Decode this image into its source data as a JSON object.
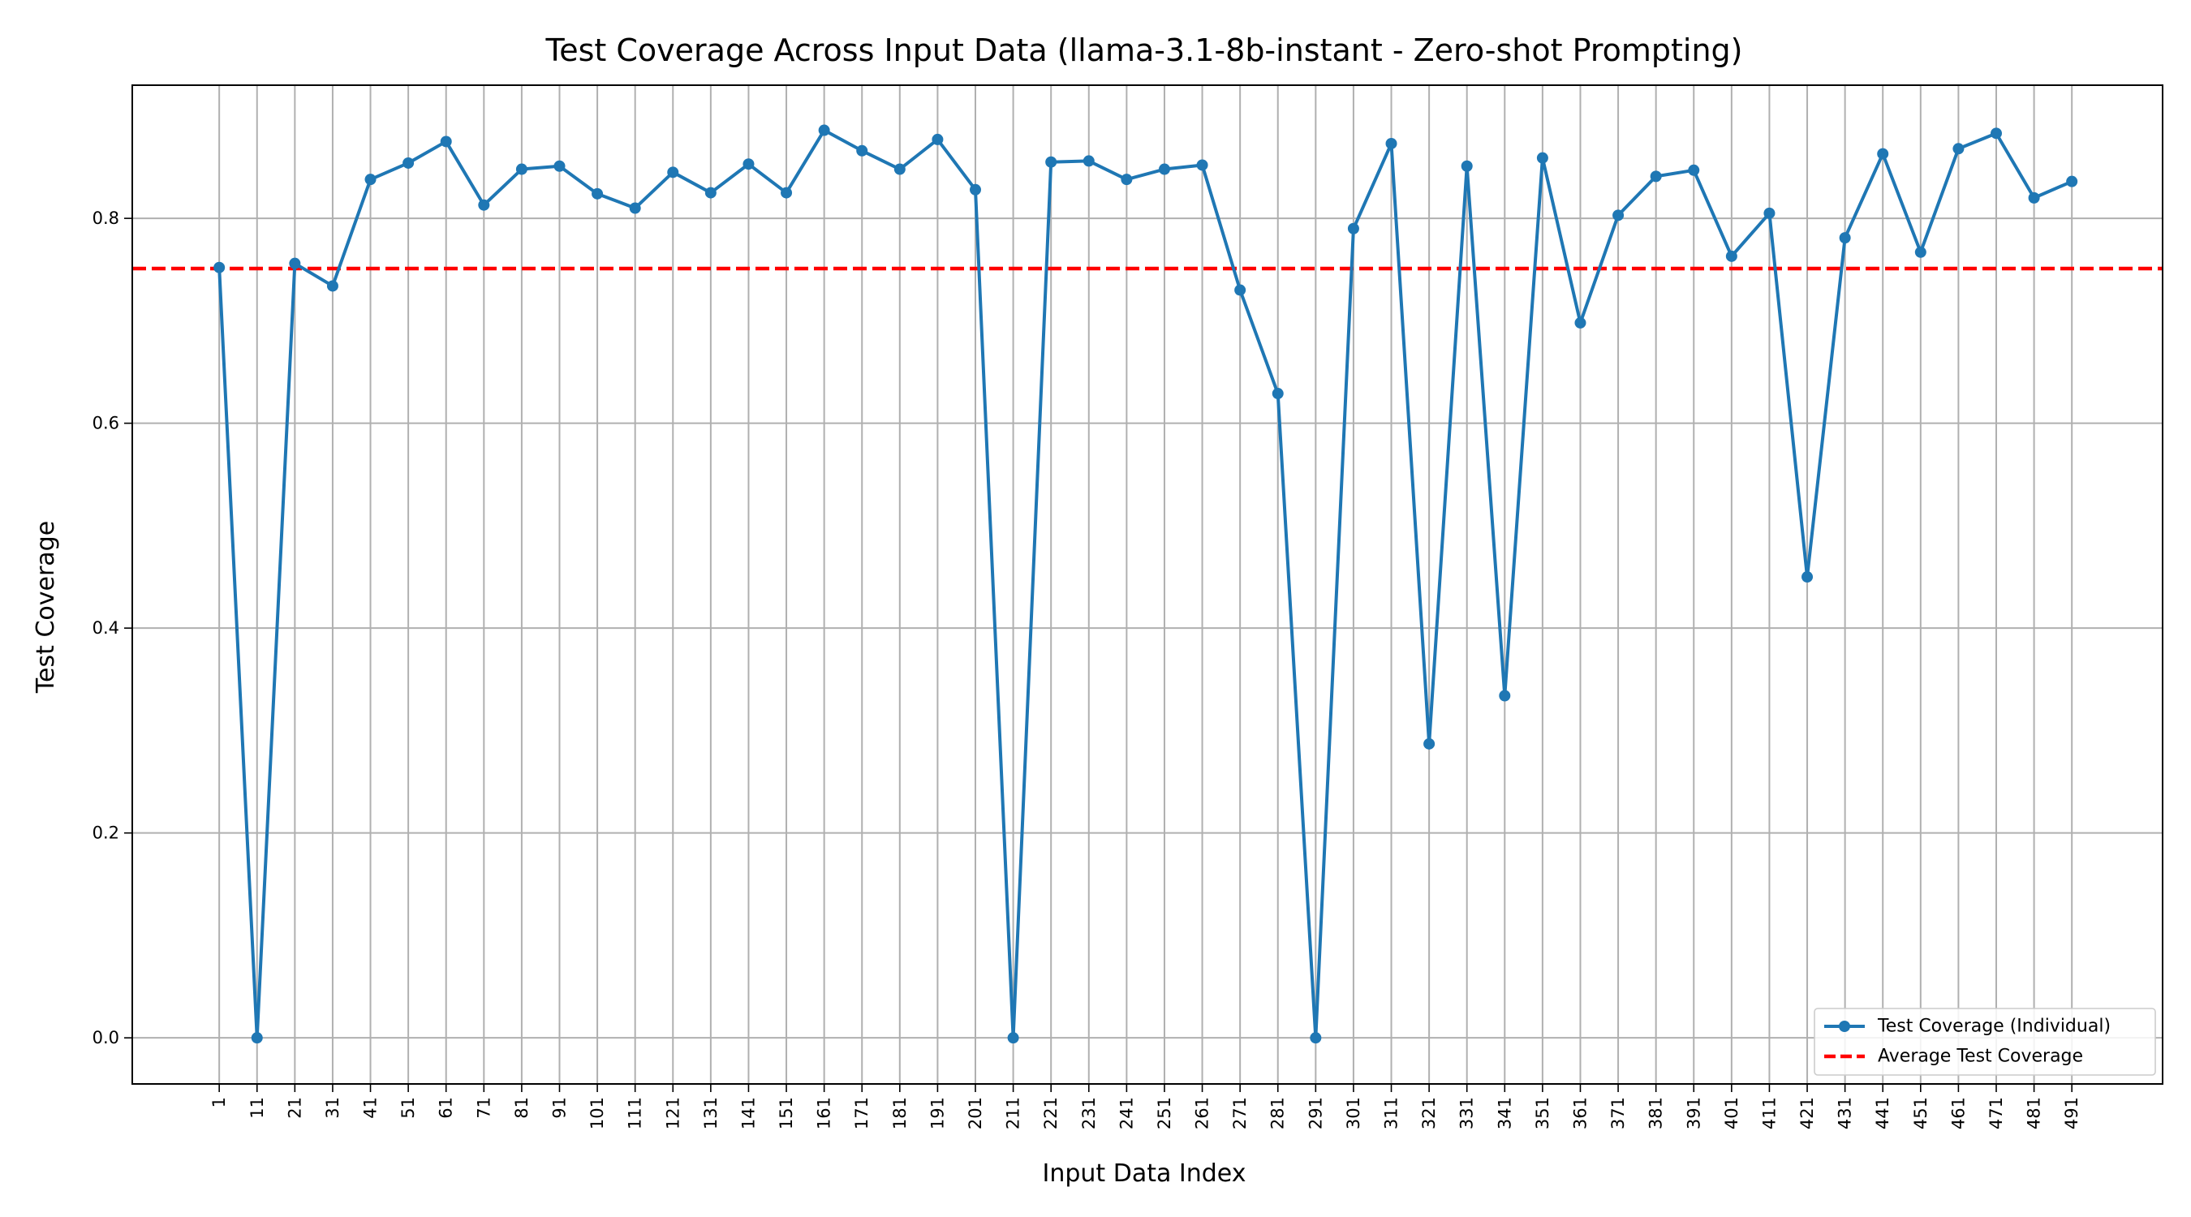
{
  "chart_data": {
    "type": "line",
    "title": "Test Coverage Across Input Data (llama-3.1-8b-instant - Zero-shot Prompting)",
    "xlabel": "Input Data Index",
    "ylabel": "Test Coverage",
    "x": [
      1,
      11,
      21,
      31,
      41,
      51,
      61,
      71,
      81,
      91,
      101,
      111,
      121,
      131,
      141,
      151,
      161,
      171,
      181,
      191,
      201,
      211,
      221,
      231,
      241,
      251,
      261,
      271,
      281,
      291,
      301,
      311,
      321,
      331,
      341,
      351,
      361,
      371,
      381,
      391,
      401,
      411,
      421,
      431,
      441,
      451,
      461,
      471,
      481,
      491
    ],
    "xticks": [
      "1",
      "11",
      "21",
      "31",
      "41",
      "51",
      "61",
      "71",
      "81",
      "91",
      "101",
      "111",
      "121",
      "131",
      "141",
      "151",
      "161",
      "171",
      "181",
      "191",
      "201",
      "211",
      "221",
      "231",
      "241",
      "251",
      "261",
      "271",
      "281",
      "291",
      "301",
      "311",
      "321",
      "331",
      "341",
      "351",
      "361",
      "371",
      "381",
      "391",
      "401",
      "411",
      "421",
      "431",
      "441",
      "451",
      "461",
      "471",
      "481",
      "491"
    ],
    "yticks": [
      "0.0",
      "0.2",
      "0.4",
      "0.6",
      "0.8"
    ],
    "ylim": [
      -0.045,
      0.93
    ],
    "xlim": [
      -22,
      515
    ],
    "grid": true,
    "legend_position": "lower-right",
    "series": [
      {
        "name": "Test Coverage (Individual)",
        "color": "#1f77b4",
        "style": "solid-with-markers",
        "values": [
          0.752,
          0.0,
          0.756,
          0.734,
          0.838,
          0.854,
          0.875,
          0.813,
          0.848,
          0.851,
          0.824,
          0.81,
          0.845,
          0.825,
          0.853,
          0.825,
          0.886,
          0.866,
          0.848,
          0.877,
          0.828,
          0.0,
          0.855,
          0.856,
          0.838,
          0.848,
          0.852,
          0.73,
          0.629,
          0.0,
          0.79,
          0.873,
          0.287,
          0.851,
          0.334,
          0.859,
          0.698,
          0.803,
          0.841,
          0.847,
          0.763,
          0.805,
          0.45,
          0.781,
          0.863,
          0.767,
          0.868,
          0.883,
          0.82,
          0.836
        ]
      },
      {
        "name": "Average Test Coverage",
        "color": "#ff0000",
        "style": "dashed",
        "value": 0.751
      }
    ]
  }
}
